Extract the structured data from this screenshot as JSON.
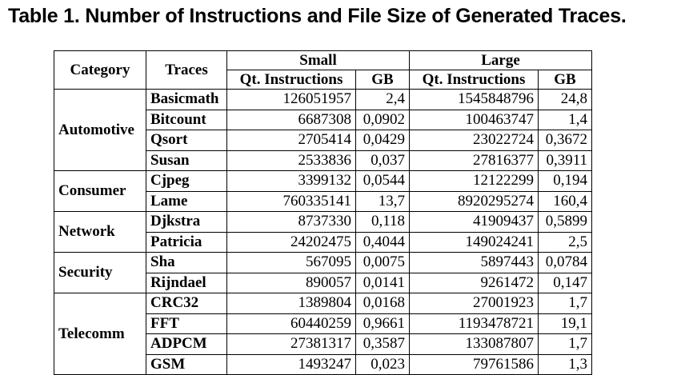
{
  "caption": "Table 1. Number of Instructions and File Size of Generated Traces.",
  "table": {
    "headers": {
      "category": "Category",
      "traces": "Traces",
      "small": "Small",
      "large": "Large",
      "small_instr": "Qt. Instructions",
      "small_gb": "GB",
      "large_instr": "Qt. Instructions",
      "large_gb": "GB"
    },
    "groups": [
      {
        "category": "Automotive",
        "rows": [
          {
            "trace": "Basicmath",
            "small_instr": "126051957",
            "small_gb": "2,4",
            "large_instr": "1545848796",
            "large_gb": "24,8"
          },
          {
            "trace": "Bitcount",
            "small_instr": "6687308",
            "small_gb": "0,0902",
            "large_instr": "100463747",
            "large_gb": "1,4"
          },
          {
            "trace": "Qsort",
            "small_instr": "2705414",
            "small_gb": "0,0429",
            "large_instr": "23022724",
            "large_gb": "0,3672"
          },
          {
            "trace": "Susan",
            "small_instr": "2533836",
            "small_gb": "0,037",
            "large_instr": "27816377",
            "large_gb": "0,3911"
          }
        ]
      },
      {
        "category": "Consumer",
        "rows": [
          {
            "trace": "Cjpeg",
            "small_instr": "3399132",
            "small_gb": "0,0544",
            "large_instr": "12122299",
            "large_gb": "0,194"
          },
          {
            "trace": "Lame",
            "small_instr": "760335141",
            "small_gb": "13,7",
            "large_instr": "8920295274",
            "large_gb": "160,4"
          }
        ]
      },
      {
        "category": "Network",
        "rows": [
          {
            "trace": "Djkstra",
            "small_instr": "8737330",
            "small_gb": "0,118",
            "large_instr": "41909437",
            "large_gb": "0,5899"
          },
          {
            "trace": "Patricia",
            "small_instr": "24202475",
            "small_gb": "0,4044",
            "large_instr": "149024241",
            "large_gb": "2,5"
          }
        ]
      },
      {
        "category": "Security",
        "rows": [
          {
            "trace": "Sha",
            "small_instr": "567095",
            "small_gb": "0,0075",
            "large_instr": "5897443",
            "large_gb": "0,0784"
          },
          {
            "trace": "Rijndael",
            "small_instr": "890057",
            "small_gb": "0,0141",
            "large_instr": "9261472",
            "large_gb": "0,147"
          }
        ]
      },
      {
        "category": "Telecomm",
        "rows": [
          {
            "trace": "CRC32",
            "small_instr": "1389804",
            "small_gb": "0,0168",
            "large_instr": "27001923",
            "large_gb": "1,7"
          },
          {
            "trace": "FFT",
            "small_instr": "60440259",
            "small_gb": "0,9661",
            "large_instr": "1193478721",
            "large_gb": "19,1"
          },
          {
            "trace": "ADPCM",
            "small_instr": "27381317",
            "small_gb": "0,3587",
            "large_instr": "133087807",
            "large_gb": "1,7"
          },
          {
            "trace": "GSM",
            "small_instr": "1493247",
            "small_gb": "0,023",
            "large_instr": "79761586",
            "large_gb": "1,3"
          }
        ]
      }
    ]
  }
}
